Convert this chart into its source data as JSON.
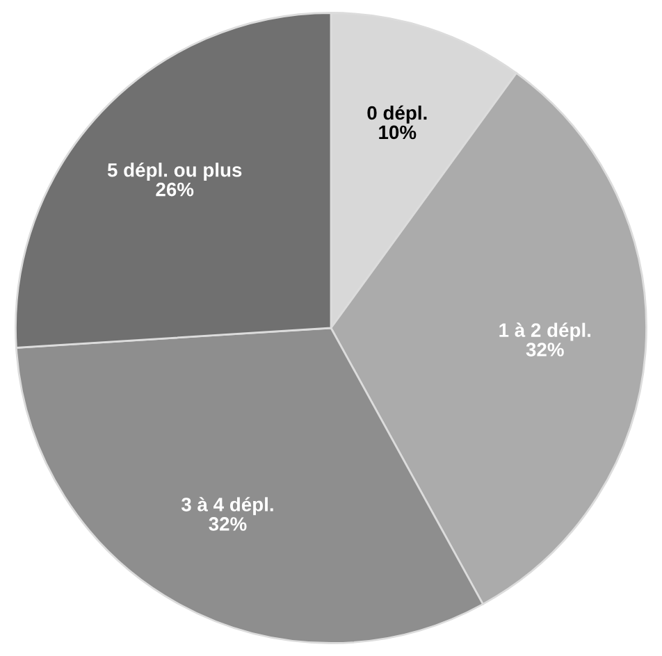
{
  "chart_data": {
    "type": "pie",
    "categories": [
      "0 dépl.",
      "1 à 2 dépl.",
      "3 à 4 dépl.",
      "5 dépl. ou plus"
    ],
    "values": [
      10,
      32,
      32,
      26
    ],
    "value_labels": [
      "10%",
      "32%",
      "32%",
      "26%"
    ],
    "colors": [
      "#d8d8d8",
      "#ababab",
      "#8e8e8e",
      "#707070"
    ]
  }
}
